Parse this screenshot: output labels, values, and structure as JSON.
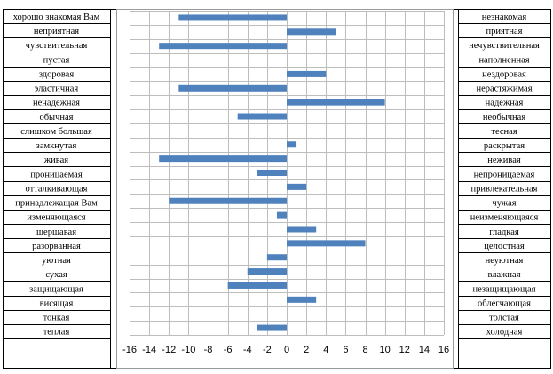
{
  "chart_data": {
    "type": "bar",
    "orientation": "horizontal",
    "left_labels": [
      "хорошо знакомая Вам",
      "неприятная",
      "чувствительная",
      "пустая",
      "здоровая",
      "эластичная",
      "ненадежная",
      "обычная",
      "слишком большая",
      "замкнутая",
      "живая",
      "проницаемая",
      "отталкивающая",
      "принадлежащая Вам",
      "изменяющаяся",
      "шершавая",
      "разорванная",
      "уютная",
      "сухая",
      "защищающая",
      "висящая",
      "тонкая",
      "теплая"
    ],
    "right_labels": [
      "незнакомая",
      "приятная",
      "нечувствительная",
      "наполненная",
      "нездоровая",
      "нерастяжимая",
      "надежная",
      "необычная",
      "тесная",
      "раскрытая",
      "неживая",
      "непроницаемая",
      "привлекательная",
      "чужая",
      "неизменяющаяся",
      "гладкая",
      "целостная",
      "неуютная",
      "влажная",
      "незащищающая",
      "облегчающая",
      "толстая",
      "холодная"
    ],
    "values": [
      -11,
      5,
      -13,
      0,
      4,
      -11,
      10,
      -5,
      0,
      1,
      -13,
      -3,
      2,
      -12,
      -1,
      3,
      8,
      -2,
      -4,
      -6,
      3,
      0,
      -3
    ],
    "xlim": [
      -16,
      16
    ],
    "xticks": [
      "-16",
      "-14",
      "-12",
      "-10",
      "-8",
      "-6",
      "-4",
      "-2",
      "0",
      "2",
      "4",
      "6",
      "8",
      "10",
      "12",
      "14",
      "16"
    ],
    "grid": true,
    "legend": "none",
    "bar_color": "#4f81bd"
  }
}
